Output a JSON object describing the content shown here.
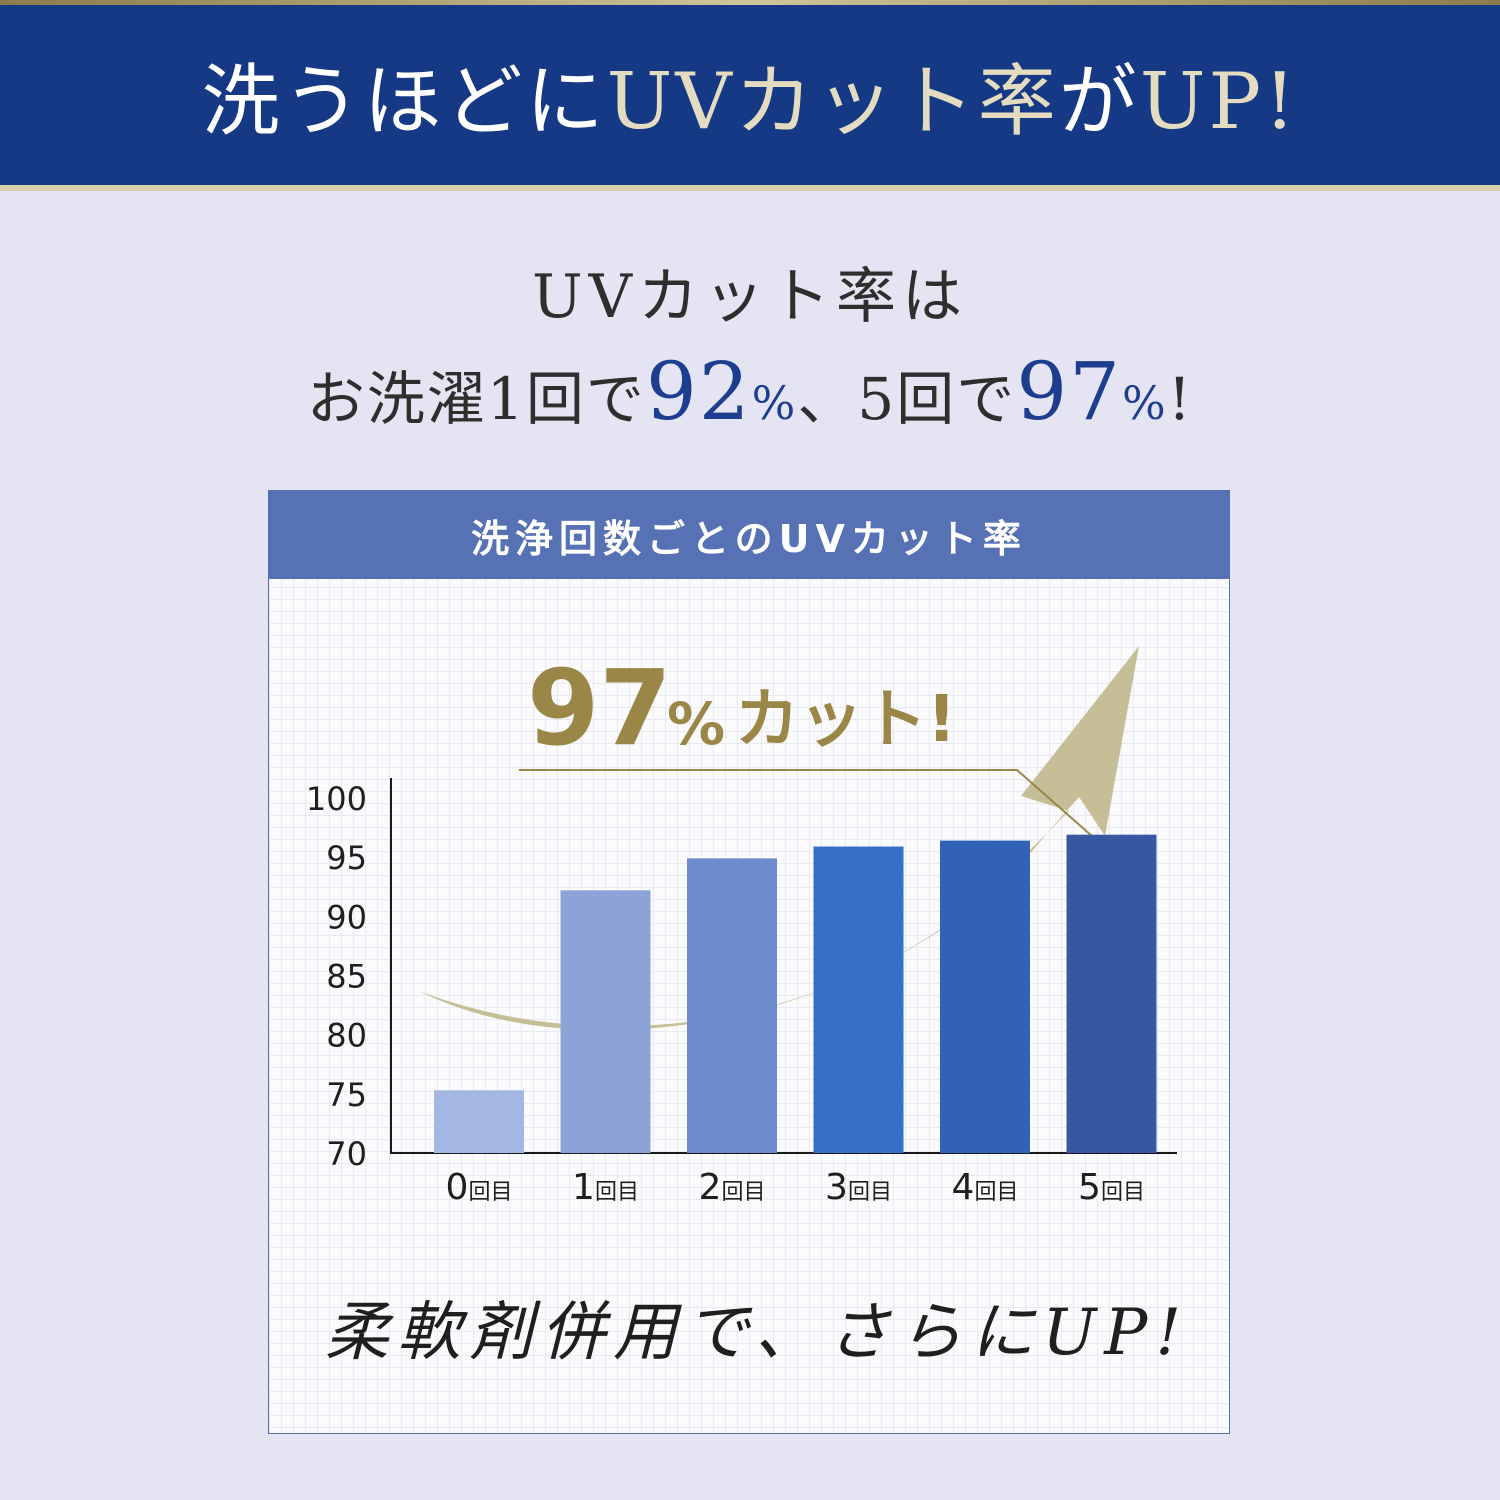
{
  "banner": {
    "title_part1": "洗うほどに",
    "title_part2": "UVカット率",
    "title_part3": "が",
    "title_part4": "UP!"
  },
  "lead": {
    "line1": "UVカット率は",
    "l2_a": "お洗濯1回で",
    "l2_b": "92",
    "l2_c": "%",
    "l2_d": "、5回で",
    "l2_e": "97",
    "l2_f": "%",
    "l2_g": "!"
  },
  "card": {
    "header": "洗浄回数ごとのUVカット率",
    "callout_number": "97",
    "callout_pct": "%",
    "callout_text": "カット!",
    "footer": "柔軟剤併用で、さらにUP!"
  },
  "colors": {
    "banner": "#163985",
    "gold": "#9a8748",
    "arrow": "#c3bb90",
    "bars": [
      "#a4b6e2",
      "#8da3d7",
      "#6b8bca",
      "#366fc6",
      "#3162b6",
      "#3857a3"
    ]
  },
  "chart_data": {
    "type": "bar",
    "title": "洗浄回数ごとのUVカット率",
    "xlabel": "",
    "ylabel": "",
    "categories": [
      {
        "num": "0",
        "unit": "回目"
      },
      {
        "num": "1",
        "unit": "回目"
      },
      {
        "num": "2",
        "unit": "回目"
      },
      {
        "num": "3",
        "unit": "回目"
      },
      {
        "num": "4",
        "unit": "回目"
      },
      {
        "num": "5",
        "unit": "回目"
      }
    ],
    "values": [
      75.3,
      92.2,
      94.9,
      95.9,
      96.4,
      96.9
    ],
    "ylim": [
      70,
      100
    ],
    "yticks": [
      "100",
      "95",
      "90",
      "85",
      "80",
      "75",
      "70"
    ],
    "grid": true,
    "legend": "none"
  }
}
